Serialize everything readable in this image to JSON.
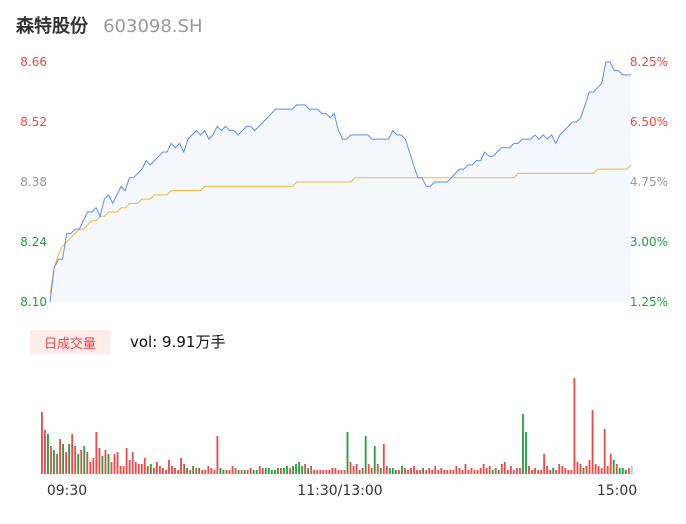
{
  "header": {
    "name": "森特股份",
    "code": "603098.SH"
  },
  "colors": {
    "price_line": "#5b8def",
    "avg_line": "#f5b731",
    "up": "#e84a4a",
    "down": "#23a03c",
    "neutral_axis": "#999999",
    "area_fill": "#f5f8fe"
  },
  "chart_data": [
    {
      "type": "line",
      "title": "",
      "y_left_ticks": [
        "8.66",
        "8.52",
        "8.38",
        "8.24",
        "8.10"
      ],
      "y_right_ticks": [
        "8.25%",
        "6.50%",
        "4.75%",
        "3.00%",
        "1.25%"
      ],
      "ylim": [
        8.1,
        8.66
      ],
      "x_ticks": [
        "09:30",
        "11:30/13:00",
        "15:00"
      ],
      "grid": false,
      "series": [
        {
          "values": [
            8.1,
            8.18,
            8.2,
            8.2,
            8.26,
            8.26,
            8.27,
            8.27,
            8.29,
            8.31,
            8.31,
            8.32,
            8.3,
            8.34,
            8.35,
            8.33,
            8.35,
            8.37,
            8.36,
            8.39,
            8.39,
            8.4,
            8.41,
            8.43,
            8.42,
            8.43,
            8.44,
            8.45,
            8.45,
            8.47,
            8.46,
            8.47,
            8.45,
            8.48,
            8.49,
            8.5,
            8.49,
            8.5,
            8.48,
            8.49,
            8.51,
            8.5,
            8.51,
            8.5,
            8.5,
            8.49,
            8.5,
            8.51,
            8.51,
            8.5,
            8.51,
            8.52,
            8.53,
            8.54,
            8.55,
            8.55,
            8.55,
            8.55,
            8.55,
            8.56,
            8.56,
            8.56,
            8.55,
            8.55,
            8.55,
            8.54,
            8.54,
            8.53,
            8.54,
            8.5,
            8.48,
            8.48,
            8.49,
            8.49,
            8.49,
            8.49,
            8.49,
            8.48,
            8.48,
            8.48,
            8.48,
            8.48,
            8.5,
            8.49,
            8.49,
            8.48,
            8.45,
            8.42,
            8.39,
            8.39,
            8.37,
            8.37,
            8.38,
            8.38,
            8.38,
            8.38,
            8.39,
            8.4,
            8.41,
            8.41,
            8.42,
            8.42,
            8.43,
            8.43,
            8.45,
            8.44,
            8.44,
            8.45,
            8.46,
            8.46,
            8.46,
            8.47,
            8.47,
            8.48,
            8.48,
            8.48,
            8.49,
            8.48,
            8.49,
            8.48,
            8.49,
            8.47,
            8.49,
            8.5,
            8.51,
            8.52,
            8.52,
            8.53,
            8.56,
            8.59,
            8.59,
            8.6,
            8.61,
            8.66,
            8.66,
            8.64,
            8.64,
            8.63,
            8.63,
            8.63
          ]
        },
        {
          "values": [
            8.12,
            8.18,
            8.21,
            8.23,
            8.24,
            8.25,
            8.26,
            8.27,
            8.27,
            8.28,
            8.29,
            8.29,
            8.3,
            8.3,
            8.31,
            8.31,
            8.31,
            8.32,
            8.32,
            8.33,
            8.33,
            8.33,
            8.34,
            8.34,
            8.34,
            8.35,
            8.35,
            8.35,
            8.35,
            8.36,
            8.36,
            8.36,
            8.36,
            8.36,
            8.36,
            8.36,
            8.36,
            8.37,
            8.37,
            8.37,
            8.37,
            8.37,
            8.37,
            8.37,
            8.37,
            8.37,
            8.37,
            8.37,
            8.37,
            8.37,
            8.37,
            8.37,
            8.37,
            8.37,
            8.37,
            8.37,
            8.37,
            8.37,
            8.37,
            8.38,
            8.38,
            8.38,
            8.38,
            8.38,
            8.38,
            8.38,
            8.38,
            8.38,
            8.38,
            8.38,
            8.38,
            8.38,
            8.38,
            8.39,
            8.39,
            8.39,
            8.39,
            8.39,
            8.39,
            8.39,
            8.39,
            8.39,
            8.39,
            8.39,
            8.39,
            8.39,
            8.39,
            8.39,
            8.39,
            8.39,
            8.39,
            8.39,
            8.39,
            8.39,
            8.39,
            8.39,
            8.39,
            8.39,
            8.39,
            8.39,
            8.39,
            8.39,
            8.39,
            8.39,
            8.39,
            8.39,
            8.39,
            8.39,
            8.39,
            8.39,
            8.39,
            8.39,
            8.4,
            8.4,
            8.4,
            8.4,
            8.4,
            8.4,
            8.4,
            8.4,
            8.4,
            8.4,
            8.4,
            8.4,
            8.4,
            8.4,
            8.4,
            8.4,
            8.4,
            8.4,
            8.4,
            8.41,
            8.41,
            8.41,
            8.41,
            8.41,
            8.41,
            8.41,
            8.41,
            8.42
          ]
        }
      ]
    },
    {
      "type": "bar",
      "title": "日成交量",
      "annotation": "vol: 9.91万手",
      "series": [
        {
          "values": [
            62,
            44,
            40,
            28,
            24,
            20,
            35,
            30,
            22,
            30,
            40,
            28,
            20,
            24,
            28,
            22,
            12,
            16,
            42,
            26,
            18,
            24,
            20,
            12,
            20,
            22,
            8,
            8,
            26,
            14,
            22,
            12,
            10,
            10,
            16,
            8,
            10,
            6,
            12,
            8,
            6,
            4,
            14,
            8,
            6,
            4,
            16,
            10,
            6,
            4,
            8,
            6,
            6,
            4,
            4,
            8,
            6,
            4,
            38,
            6,
            4,
            4,
            4,
            8,
            6,
            4,
            4,
            4,
            4,
            6,
            4,
            4,
            8,
            6,
            6,
            6,
            4,
            4,
            6,
            6,
            6,
            8,
            6,
            8,
            10,
            12,
            8,
            10,
            6,
            8,
            4,
            4,
            4,
            4,
            4,
            4,
            6,
            6,
            4,
            4,
            4,
            42,
            12,
            8,
            10,
            4,
            6,
            38,
            10,
            6,
            28,
            10,
            6,
            30,
            8,
            6,
            6,
            4,
            4,
            8,
            6,
            4,
            6,
            8,
            4,
            4,
            6,
            4,
            6,
            4,
            8,
            4,
            6,
            4,
            4,
            4,
            4,
            8,
            6,
            4,
            10,
            4,
            6,
            4,
            4,
            6,
            10,
            6,
            8,
            4,
            6,
            4,
            10,
            12,
            4,
            8,
            4,
            6,
            6,
            60,
            42,
            8,
            4,
            6,
            4,
            4,
            20,
            8,
            4,
            6,
            4,
            10,
            8,
            6,
            4,
            4,
            96,
            12,
            10,
            6,
            8,
            14,
            64,
            10,
            8,
            6,
            45,
            8,
            20,
            14,
            10,
            6,
            6,
            4,
            6,
            8
          ],
          "colors": [
            "up",
            "up",
            "down",
            "up",
            "down",
            "up",
            "up",
            "down",
            "up",
            "down",
            "up",
            "up",
            "down",
            "up",
            "down",
            "up",
            "up",
            "up",
            "up",
            "up",
            "down",
            "up",
            "down",
            "up",
            "up",
            "up",
            "up",
            "up",
            "up",
            "up",
            "up",
            "up",
            "up",
            "up",
            "up",
            "up",
            "down",
            "up",
            "up",
            "up",
            "up",
            "up",
            "up",
            "up",
            "up",
            "up",
            "up",
            "up",
            "down",
            "up",
            "down",
            "up",
            "down",
            "up",
            "up",
            "up",
            "up",
            "up",
            "up",
            "down",
            "down",
            "up",
            "up",
            "up",
            "up",
            "down",
            "up",
            "down",
            "up",
            "up",
            "down",
            "down",
            "up",
            "up",
            "down",
            "down",
            "down",
            "down",
            "down",
            "up",
            "down",
            "down",
            "up",
            "down",
            "down",
            "down",
            "down",
            "up",
            "down",
            "up",
            "up",
            "up",
            "up",
            "up",
            "up",
            "up",
            "up",
            "up",
            "up",
            "up",
            "up",
            "down",
            "up",
            "up",
            "up",
            "down",
            "up",
            "down",
            "up",
            "up",
            "down",
            "up",
            "down",
            "up",
            "up",
            "down",
            "down",
            "down",
            "up",
            "down",
            "up",
            "up",
            "up",
            "up",
            "up",
            "up",
            "down",
            "up",
            "up",
            "up",
            "up",
            "up",
            "up",
            "up",
            "up",
            "up",
            "up",
            "up",
            "up",
            "up",
            "up",
            "up",
            "up",
            "up",
            "up",
            "up",
            "up",
            "up",
            "up",
            "down",
            "up",
            "down",
            "up",
            "up",
            "up",
            "up",
            "up",
            "up",
            "up",
            "down",
            "down",
            "up",
            "up",
            "up",
            "up",
            "up",
            "up",
            "up",
            "up",
            "down",
            "up",
            "up",
            "up",
            "up",
            "up",
            "up",
            "up",
            "up",
            "up",
            "down",
            "up",
            "up",
            "up",
            "up",
            "up",
            "up",
            "up",
            "up",
            "up",
            "down",
            "up",
            "down",
            "down",
            "down",
            "up",
            "down",
            "up",
            "up"
          ]
        }
      ]
    }
  ]
}
